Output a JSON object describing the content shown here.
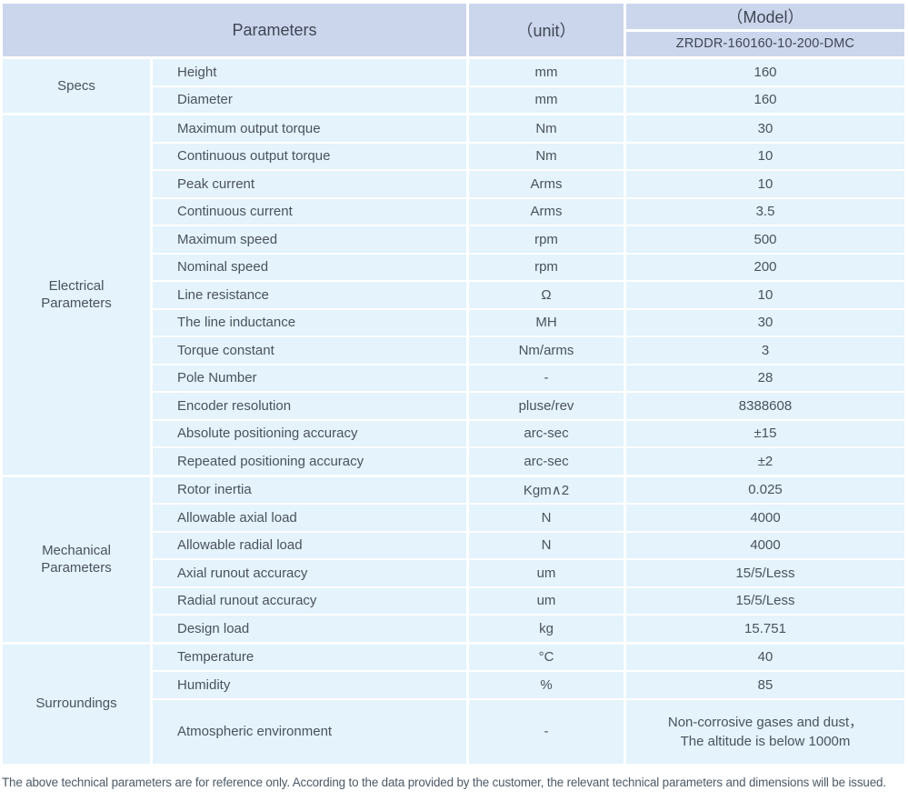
{
  "table": {
    "header": {
      "parameters_label": "Parameters",
      "unit_label": "（unit）",
      "model_label": "（Model）",
      "model_value": "ZRDDR-160160-10-200-DMC"
    },
    "sections": [
      {
        "name": "Specs",
        "rows": [
          {
            "param": "Height",
            "unit": "mm",
            "value": "160"
          },
          {
            "param": "Diameter",
            "unit": "mm",
            "value": "160"
          }
        ]
      },
      {
        "name": "Electrical Parameters",
        "rows": [
          {
            "param": "Maximum output torque",
            "unit": "Nm",
            "value": "30"
          },
          {
            "param": "Continuous output torque",
            "unit": "Nm",
            "value": "10"
          },
          {
            "param": "Peak current",
            "unit": "Arms",
            "value": "10"
          },
          {
            "param": "Continuous current",
            "unit": "Arms",
            "value": "3.5"
          },
          {
            "param": "Maximum speed",
            "unit": "rpm",
            "value": "500"
          },
          {
            "param": "Nominal speed",
            "unit": "rpm",
            "value": "200"
          },
          {
            "param": "Line resistance",
            "unit": "Ω",
            "value": "10"
          },
          {
            "param": "The line inductance",
            "unit": "MH",
            "value": "30"
          },
          {
            "param": "Torque constant",
            "unit": "Nm/arms",
            "value": "3"
          },
          {
            "param": "Pole Number",
            "unit": "-",
            "value": "28"
          },
          {
            "param": "Encoder resolution",
            "unit": "pluse/rev",
            "value": "8388608"
          },
          {
            "param": "Absolute positioning accuracy",
            "unit": "arc-sec",
            "value": "±15"
          },
          {
            "param": "Repeated positioning accuracy",
            "unit": "arc-sec",
            "value": "±2"
          }
        ]
      },
      {
        "name": "Mechanical Parameters",
        "rows": [
          {
            "param": "Rotor inertia",
            "unit": "Kgm∧2",
            "value": "0.025"
          },
          {
            "param": "Allowable axial load",
            "unit": "N",
            "value": "4000"
          },
          {
            "param": "Allowable radial load",
            "unit": "N",
            "value": "4000"
          },
          {
            "param": "Axial runout accuracy",
            "unit": "um",
            "value": "15/5/Less"
          },
          {
            "param": "Radial runout accuracy",
            "unit": "um",
            "value": "15/5/Less"
          },
          {
            "param": "Design load",
            "unit": "kg",
            "value": "15.751"
          }
        ]
      },
      {
        "name": "Surroundings",
        "rows": [
          {
            "param": "Temperature",
            "unit": "°C",
            "value": "40"
          },
          {
            "param": "Humidity",
            "unit": "%",
            "value": "85"
          },
          {
            "param": "Atmospheric environment",
            "unit": "-",
            "value": "Non-corrosive gases and dust，\nThe altitude is below 1000m"
          }
        ]
      }
    ]
  },
  "footer": {
    "note": "The above technical parameters are for reference only. According to the data provided by the customer, the relevant technical parameters and dimensions will be issued."
  },
  "colors": {
    "header_bg": "#cbd5ec",
    "row_bg": "#e4f3fc",
    "text": "#4a525e",
    "header_text": "#3f4755",
    "note_text": "#4c5a66"
  }
}
